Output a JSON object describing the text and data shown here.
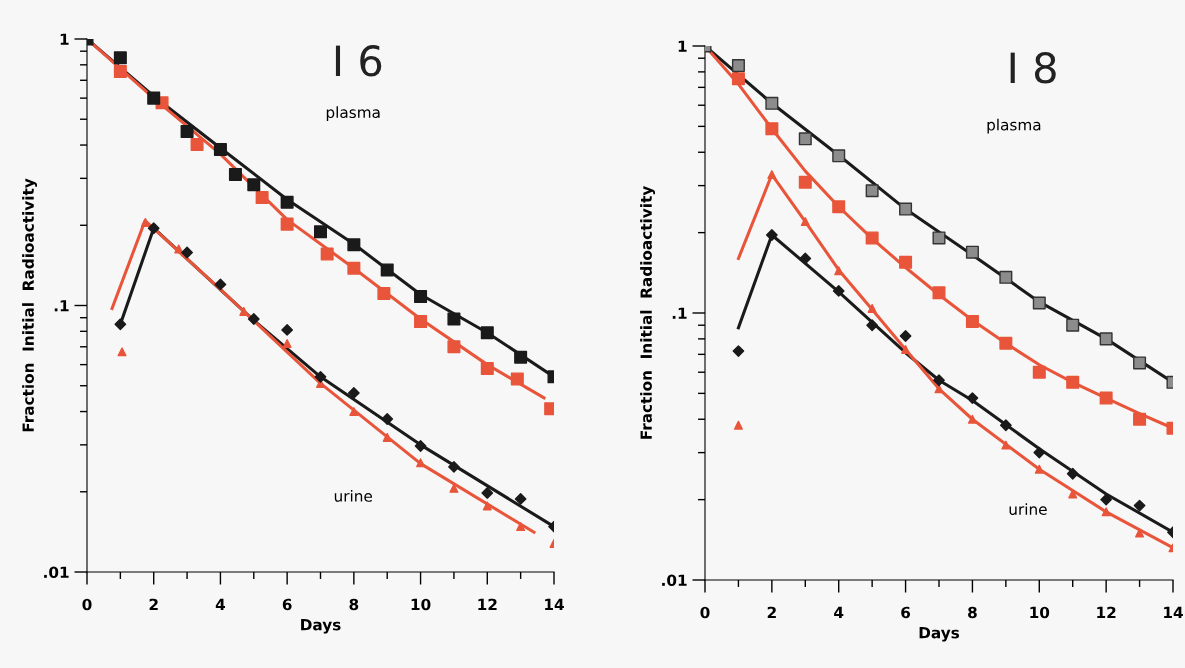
{
  "chart_data": [
    {
      "type": "scatter",
      "title": "I 6",
      "xlabel": "Days",
      "ylabel": "Fraction  Initial  Radioactivity",
      "log": true,
      "grid": false,
      "xlim": [
        0,
        14
      ],
      "xticks": [
        0,
        2,
        4,
        6,
        8,
        10,
        12,
        14
      ],
      "ylim": [
        0.01,
        1
      ],
      "yticks": [
        {
          "value": 1,
          "label": "1"
        },
        {
          "value": 0.1,
          "label": ".1"
        },
        {
          "value": 0.01,
          "label": ".01"
        }
      ],
      "annotations": [
        "plasma",
        "urine"
      ],
      "series": [
        {
          "type": "line",
          "color": "#1a1a1a",
          "marker": "none",
          "x": [
            0,
            2,
            4,
            6,
            8,
            10,
            12,
            14
          ],
          "values": [
            1,
            0.61,
            0.39,
            0.25,
            0.17,
            0.11,
            0.079,
            0.054
          ]
        },
        {
          "type": "line",
          "color": "#e8553a",
          "marker": "none",
          "x": [
            0,
            2,
            4,
            6,
            8,
            10,
            12,
            13.7
          ],
          "values": [
            1,
            0.6,
            0.37,
            0.21,
            0.138,
            0.089,
            0.06,
            0.045
          ]
        },
        {
          "type": "line",
          "color": "#1a1a1a",
          "marker": "none",
          "x": [
            1,
            2,
            5,
            7,
            10,
            14
          ],
          "values": [
            0.085,
            0.195,
            0.088,
            0.054,
            0.03,
            0.0148
          ]
        },
        {
          "type": "line",
          "color": "#e8553a",
          "marker": "none",
          "x": [
            0.75,
            1.74,
            4,
            7,
            10,
            13.4
          ],
          "values": [
            0.0975,
            0.208,
            0.115,
            0.051,
            0.0255,
            0.0141
          ]
        },
        {
          "color": "#e8553a",
          "marker": "square",
          "x": [
            1,
            2.25,
            3.3,
            5.25,
            6,
            7.2,
            8,
            8.9,
            10,
            11,
            12,
            12.9,
            13.9
          ],
          "values": [
            0.755,
            0.576,
            0.402,
            0.254,
            0.202,
            0.156,
            0.138,
            0.111,
            0.087,
            0.07,
            0.058,
            0.053,
            0.041
          ]
        },
        {
          "color": "#1a1a1a",
          "marker": "square",
          "x": [
            0,
            1,
            2,
            3,
            4,
            4.45,
            5,
            6,
            7,
            8,
            9,
            10,
            11,
            12,
            13,
            14
          ],
          "values": [
            1.0,
            0.85,
            0.6,
            0.45,
            0.385,
            0.31,
            0.284,
            0.244,
            0.189,
            0.169,
            0.136,
            0.108,
            0.089,
            0.079,
            0.064,
            0.054
          ]
        },
        {
          "color": "#e8553a",
          "marker": "triangle",
          "x": [
            1.05,
            1.75,
            2.75,
            4.7,
            6,
            7,
            8,
            9,
            10,
            11,
            12,
            13,
            14
          ],
          "values": [
            0.067,
            0.205,
            0.163,
            0.095,
            0.072,
            0.051,
            0.04,
            0.032,
            0.0257,
            0.0206,
            0.0177,
            0.0148,
            0.0128
          ]
        },
        {
          "color": "#1a1a1a",
          "marker": "diamond",
          "x": [
            1,
            2,
            3,
            4,
            5,
            6,
            7,
            8,
            9,
            10,
            11,
            12,
            13,
            14
          ],
          "values": [
            0.085,
            0.195,
            0.158,
            0.12,
            0.089,
            0.081,
            0.054,
            0.047,
            0.0375,
            0.0297,
            0.0248,
            0.0198,
            0.0188,
            0.0148
          ]
        }
      ]
    },
    {
      "type": "scatter",
      "title": "I 8",
      "xlabel": "Days",
      "ylabel": "Fraction  Initial  Radioactivity",
      "log": true,
      "grid": false,
      "xlim": [
        0,
        14
      ],
      "xticks": [
        0,
        2,
        4,
        6,
        8,
        10,
        12,
        14
      ],
      "ylim": [
        0.01,
        1
      ],
      "yticks": [
        {
          "value": 1,
          "label": "1"
        },
        {
          "value": 0.1,
          "label": ".1"
        },
        {
          "value": 0.01,
          "label": ".01"
        }
      ],
      "annotations": [
        "plasma",
        "urine"
      ],
      "series": [
        {
          "type": "line",
          "color": "#1a1a1a",
          "marker": "none",
          "x": [
            0,
            2,
            4,
            6,
            8,
            10,
            12,
            14
          ],
          "values": [
            1,
            0.61,
            0.39,
            0.245,
            0.165,
            0.11,
            0.08,
            0.055
          ]
        },
        {
          "type": "line",
          "color": "#e8553a",
          "marker": "none",
          "x": [
            0,
            1,
            2,
            3,
            4,
            5,
            6,
            7,
            8,
            9,
            10,
            11,
            12,
            13,
            14
          ],
          "values": [
            1,
            0.72,
            0.49,
            0.34,
            0.25,
            0.19,
            0.148,
            0.117,
            0.094,
            0.077,
            0.064,
            0.055,
            0.048,
            0.042,
            0.037
          ]
        },
        {
          "type": "line",
          "color": "#1a1a1a",
          "marker": "none",
          "x": [
            1,
            2,
            4,
            6,
            7,
            8,
            10,
            12,
            14
          ],
          "values": [
            0.088,
            0.196,
            0.12,
            0.071,
            0.056,
            0.047,
            0.031,
            0.021,
            0.0151
          ]
        },
        {
          "type": "line",
          "color": "#e8553a",
          "marker": "none",
          "x": [
            1,
            2,
            3,
            4,
            5,
            6,
            7,
            8,
            10,
            12,
            14
          ],
          "values": [
            0.16,
            0.33,
            0.22,
            0.145,
            0.103,
            0.073,
            0.052,
            0.04,
            0.026,
            0.018,
            0.0132
          ]
        },
        {
          "color": "#e8553a",
          "marker": "square",
          "x": [
            1,
            2,
            3,
            4,
            5,
            6,
            7,
            8,
            9,
            10,
            11,
            12,
            13,
            14
          ],
          "values": [
            0.754,
            0.49,
            0.309,
            0.25,
            0.191,
            0.155,
            0.119,
            0.093,
            0.077,
            0.06,
            0.055,
            0.048,
            0.04,
            0.037
          ]
        },
        {
          "color": "#8c8c8c",
          "marker": "square",
          "x": [
            0,
            1,
            2,
            3,
            4,
            5,
            6,
            7,
            8,
            9,
            10,
            11,
            12,
            13,
            14
          ],
          "values": [
            1.0,
            0.845,
            0.61,
            0.449,
            0.388,
            0.287,
            0.245,
            0.191,
            0.169,
            0.136,
            0.109,
            0.09,
            0.08,
            0.065,
            0.055
          ]
        },
        {
          "color": "#e8553a",
          "marker": "triangle",
          "x": [
            1,
            2,
            3,
            4,
            5,
            6,
            7,
            8,
            9,
            10,
            11,
            12,
            13,
            14
          ],
          "values": [
            0.038,
            0.33,
            0.22,
            0.144,
            0.104,
            0.073,
            0.052,
            0.04,
            0.032,
            0.026,
            0.021,
            0.018,
            0.015,
            0.0132
          ]
        },
        {
          "color": "#1a1a1a",
          "marker": "diamond",
          "x": [
            1,
            2,
            3,
            4,
            5,
            6,
            7,
            8,
            9,
            10,
            11,
            12,
            13,
            14
          ],
          "values": [
            0.072,
            0.196,
            0.16,
            0.121,
            0.09,
            0.082,
            0.056,
            0.048,
            0.038,
            0.03,
            0.025,
            0.02,
            0.019,
            0.0151
          ]
        }
      ]
    }
  ]
}
